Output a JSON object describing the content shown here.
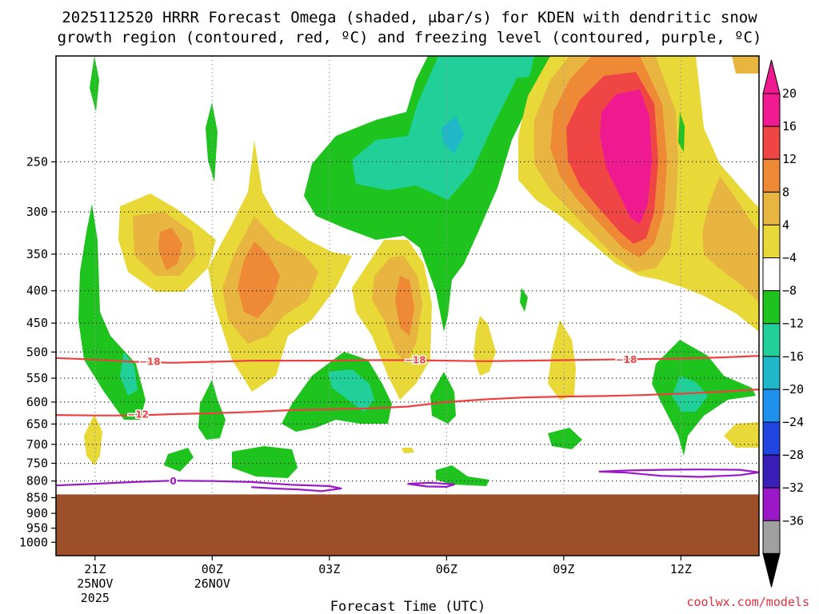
{
  "chart_data": {
    "type": "heatmap",
    "title_line1": "2025112520 HRRR Forecast Omega (shaded, μbar/s) for KDEN with dendritic snow",
    "title_line2": "growth region (contoured, red, ºC) and freezing level (contoured, purple, ºC)",
    "xlabel": "Forecast Time (UTC)",
    "ylabel": "",
    "credit": "coolwx.com/models",
    "x_range_hours": [
      -1,
      17
    ],
    "y_range_hpa": [
      1050,
      170
    ],
    "ground_level_hpa": 840,
    "x_ticks": [
      {
        "hour": 0,
        "label": "21Z",
        "date": "25NOV",
        "year": "2025"
      },
      {
        "hour": 3,
        "label": "00Z",
        "date": "26NOV",
        "year": ""
      },
      {
        "hour": 6,
        "label": "03Z",
        "date": "",
        "year": ""
      },
      {
        "hour": 9,
        "label": "06Z",
        "date": "",
        "year": ""
      },
      {
        "hour": 12,
        "label": "09Z",
        "date": "",
        "year": ""
      },
      {
        "hour": 15,
        "label": "12Z",
        "date": "",
        "year": ""
      }
    ],
    "y_ticks": [
      {
        "hpa": 250,
        "label": "250",
        "grid": true
      },
      {
        "hpa": 300,
        "label": "300",
        "grid": true
      },
      {
        "hpa": 350,
        "label": "350",
        "grid": true
      },
      {
        "hpa": 400,
        "label": "400",
        "grid": true
      },
      {
        "hpa": 450,
        "label": "450",
        "grid": true
      },
      {
        "hpa": 500,
        "label": "500",
        "grid": true
      },
      {
        "hpa": 550,
        "label": "550",
        "grid": true
      },
      {
        "hpa": 600,
        "label": "600",
        "grid": true
      },
      {
        "hpa": 650,
        "label": "650",
        "grid": true
      },
      {
        "hpa": 700,
        "label": "700",
        "grid": true
      },
      {
        "hpa": 750,
        "label": "750",
        "grid": true
      },
      {
        "hpa": 800,
        "label": "800",
        "grid": true
      },
      {
        "hpa": 850,
        "label": "850",
        "grid": false
      },
      {
        "hpa": 900,
        "label": "900",
        "grid": false
      },
      {
        "hpa": 950,
        "label": "950",
        "grid": false
      },
      {
        "hpa": 1000,
        "label": "1000",
        "grid": false
      }
    ],
    "colorbar": {
      "labels": [
        "20",
        "16",
        "12",
        "8",
        "4",
        "−4",
        "−8",
        "−12",
        "−16",
        "−20",
        "−24",
        "−28",
        "−32",
        "−36"
      ],
      "colors": [
        "#f01a90",
        "#f04545",
        "#ee8a35",
        "#e8b540",
        "#e8d838",
        "#ffffff",
        "#1ec31e",
        "#20d098",
        "#20b8c8",
        "#1e90ee",
        "#2045e0",
        "#3a1eb8",
        "#9a18c8",
        "#a0a0a0"
      ],
      "top_arrow": "#f01a90",
      "bottom_arrow": "#000000"
    },
    "contour_lines": [
      {
        "name": "dendritic-top",
        "value": -18,
        "label": "−18",
        "color": "#ee4040",
        "points": [
          [
            -1,
            511
          ],
          [
            0,
            514
          ],
          [
            1,
            518
          ],
          [
            2,
            520
          ],
          [
            3,
            518
          ],
          [
            4,
            516
          ],
          [
            5,
            516
          ],
          [
            6,
            516
          ],
          [
            7,
            515
          ],
          [
            8,
            515
          ],
          [
            9,
            516
          ],
          [
            10,
            517
          ],
          [
            11,
            516
          ],
          [
            12,
            515
          ],
          [
            13,
            514
          ],
          [
            14,
            513
          ],
          [
            15,
            512
          ],
          [
            16,
            510
          ],
          [
            17,
            507
          ]
        ],
        "label_at": [
          [
            1.4,
            518
          ],
          [
            8.2,
            515
          ],
          [
            13.6,
            514
          ]
        ]
      },
      {
        "name": "dendritic-bottom",
        "value": -12,
        "label": "−12",
        "color": "#ee4040",
        "points": [
          [
            -1,
            629
          ],
          [
            0,
            630
          ],
          [
            1,
            630
          ],
          [
            2,
            627
          ],
          [
            3,
            625
          ],
          [
            4,
            622
          ],
          [
            5,
            618
          ],
          [
            6,
            616
          ],
          [
            7,
            614
          ],
          [
            8,
            610
          ],
          [
            9,
            600
          ],
          [
            10,
            594
          ],
          [
            11,
            590
          ],
          [
            12,
            588
          ],
          [
            13,
            587
          ],
          [
            14,
            585
          ],
          [
            15,
            582
          ],
          [
            16,
            578
          ],
          [
            17,
            573
          ]
        ],
        "label_at": [
          [
            1.1,
            628
          ]
        ]
      },
      {
        "name": "freezing-level-west",
        "value": 0,
        "label": "0",
        "color": "#9a18c8",
        "points": [
          [
            -1,
            813
          ],
          [
            0,
            808
          ],
          [
            1,
            803
          ],
          [
            2,
            799
          ],
          [
            3,
            800
          ],
          [
            4,
            803
          ],
          [
            5,
            811
          ],
          [
            6,
            815
          ],
          [
            6.3,
            822
          ],
          [
            5.8,
            830
          ],
          [
            5.2,
            825
          ],
          [
            4.6,
            822
          ],
          [
            4,
            818
          ]
        ],
        "label_at": [
          [
            2,
            801
          ]
        ]
      },
      {
        "name": "freezing-level-mid",
        "value": 0,
        "label": "",
        "color": "#9a18c8",
        "points": [
          [
            8,
            808
          ],
          [
            8.6,
            805
          ],
          [
            9.2,
            810
          ],
          [
            9.0,
            817
          ],
          [
            8.5,
            816
          ],
          [
            8,
            808
          ]
        ],
        "label_at": []
      },
      {
        "name": "freezing-level-east",
        "value": 0,
        "label": "",
        "color": "#9a18c8",
        "points": [
          [
            12.9,
            773
          ],
          [
            13.6,
            776
          ],
          [
            14.5,
            785
          ],
          [
            15.5,
            788
          ],
          [
            16.5,
            783
          ],
          [
            17,
            775
          ],
          [
            16.5,
            768
          ],
          [
            15.5,
            767
          ],
          [
            14.5,
            768
          ],
          [
            13.6,
            770
          ],
          [
            12.9,
            773
          ]
        ],
        "label_at": []
      }
    ]
  }
}
